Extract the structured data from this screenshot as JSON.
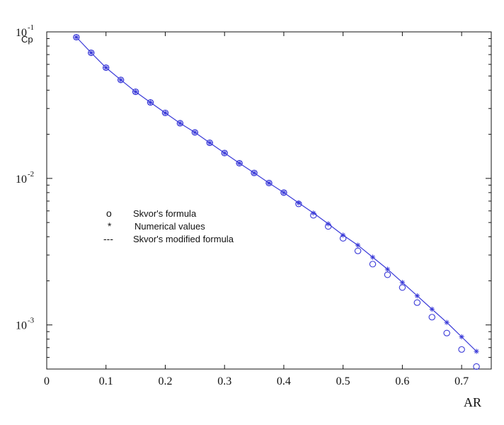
{
  "chart_data": {
    "type": "scatter",
    "title": "",
    "xlabel": "AR",
    "ylabel": "Cp",
    "xlim": [
      0,
      0.75
    ],
    "ylim": [
      0.0005,
      0.1
    ],
    "yscale": "log",
    "grid": false,
    "legend_position": "center-left",
    "x_ticks": [
      "0",
      "0.1",
      "0.2",
      "0.3",
      "0.4",
      "0.5",
      "0.6",
      "0.7"
    ],
    "y_ticks": [
      {
        "base": "10",
        "exp": "-1"
      },
      {
        "base": "10",
        "exp": "-2"
      },
      {
        "base": "10",
        "exp": "-3"
      }
    ],
    "x": [
      0.05,
      0.075,
      0.1,
      0.125,
      0.15,
      0.175,
      0.2,
      0.225,
      0.25,
      0.275,
      0.3,
      0.325,
      0.35,
      0.375,
      0.4,
      0.425,
      0.45,
      0.475,
      0.5,
      0.525,
      0.55,
      0.575,
      0.6,
      0.625,
      0.65,
      0.675,
      0.7,
      0.725
    ],
    "series": [
      {
        "name": "Skvor's formula",
        "marker": "circle",
        "color": "#3a3ad8",
        "values": [
          0.092,
          0.072,
          0.057,
          0.047,
          0.039,
          0.033,
          0.028,
          0.0238,
          0.0206,
          0.0175,
          0.0149,
          0.0127,
          0.0109,
          0.0093,
          0.008,
          0.0067,
          0.0056,
          0.0047,
          0.0039,
          0.0032,
          0.0026,
          0.0022,
          0.0018,
          0.00142,
          0.00113,
          0.00088,
          0.00068,
          0.00052
        ]
      },
      {
        "name": "Numerical values",
        "marker": "star",
        "color": "#3a3ad8",
        "values": [
          0.092,
          0.072,
          0.057,
          0.047,
          0.039,
          0.033,
          0.028,
          0.0238,
          0.0206,
          0.0175,
          0.0149,
          0.0127,
          0.0109,
          0.0093,
          0.008,
          0.0068,
          0.0058,
          0.0049,
          0.0041,
          0.0035,
          0.0029,
          0.0024,
          0.00195,
          0.00158,
          0.00128,
          0.00104,
          0.00083,
          0.00066
        ]
      },
      {
        "name": "Skvor's modified formula",
        "marker": "line",
        "color": "#3a3ad8",
        "values": [
          0.092,
          0.072,
          0.057,
          0.047,
          0.039,
          0.033,
          0.028,
          0.0238,
          0.0206,
          0.0175,
          0.0149,
          0.0127,
          0.0109,
          0.0093,
          0.008,
          0.0068,
          0.0058,
          0.0049,
          0.0041,
          0.0035,
          0.0029,
          0.0024,
          0.00195,
          0.00158,
          0.00128,
          0.00104,
          0.00083,
          0.00066
        ]
      }
    ],
    "legend": [
      {
        "symbol": "o",
        "label": "Skvor's formula"
      },
      {
        "symbol": "*",
        "label": "Numerical values"
      },
      {
        "symbol": "---",
        "label": "Skvor's modified formula"
      }
    ]
  }
}
